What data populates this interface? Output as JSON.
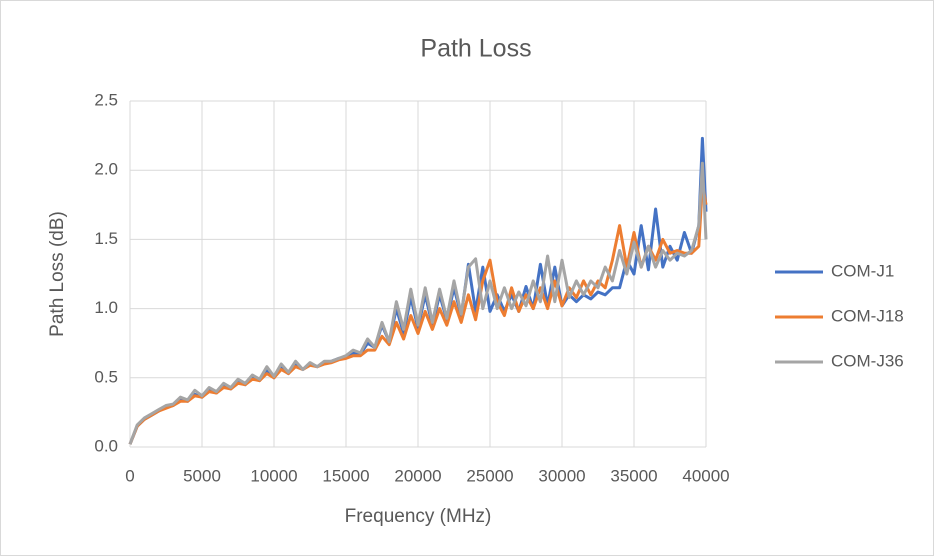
{
  "chart_data": {
    "type": "line",
    "title": "Path Loss",
    "x_label": "Frequency (MHz)",
    "y_label": "Path Loss (dB)",
    "x": [
      0,
      500,
      1000,
      1500,
      2000,
      2500,
      3000,
      3500,
      4000,
      4500,
      5000,
      5500,
      6000,
      6500,
      7000,
      7500,
      8000,
      8500,
      9000,
      9500,
      10000,
      10500,
      11000,
      11500,
      12000,
      12500,
      13000,
      13500,
      14000,
      14500,
      15000,
      15500,
      16000,
      16500,
      17000,
      17500,
      18000,
      18500,
      19000,
      19500,
      20000,
      20500,
      21000,
      21500,
      22000,
      22500,
      23000,
      23500,
      24000,
      24500,
      25000,
      25500,
      26000,
      26500,
      27000,
      27500,
      28000,
      28500,
      29000,
      29500,
      30000,
      30500,
      31000,
      31500,
      32000,
      32500,
      33000,
      33500,
      34000,
      34500,
      35000,
      35500,
      36000,
      36500,
      37000,
      37500,
      38000,
      38500,
      39000,
      39500,
      39750,
      40000
    ],
    "series": [
      {
        "name": "COM-J1",
        "color": "#4472c4",
        "values": [
          0.02,
          0.15,
          0.2,
          0.23,
          0.26,
          0.29,
          0.3,
          0.34,
          0.33,
          0.38,
          0.36,
          0.41,
          0.39,
          0.44,
          0.42,
          0.47,
          0.45,
          0.5,
          0.48,
          0.55,
          0.5,
          0.58,
          0.53,
          0.6,
          0.56,
          0.6,
          0.58,
          0.61,
          0.62,
          0.64,
          0.65,
          0.68,
          0.67,
          0.75,
          0.72,
          0.88,
          0.76,
          1.0,
          0.82,
          1.08,
          0.86,
          1.1,
          0.88,
          1.1,
          0.92,
          1.15,
          0.95,
          1.32,
          0.98,
          1.3,
          0.98,
          1.1,
          0.98,
          1.1,
          0.98,
          1.16,
          1.0,
          1.32,
          1.02,
          1.3,
          1.02,
          1.1,
          1.05,
          1.1,
          1.07,
          1.12,
          1.1,
          1.15,
          1.15,
          1.35,
          1.25,
          1.6,
          1.28,
          1.72,
          1.3,
          1.45,
          1.35,
          1.55,
          1.4,
          1.6,
          2.23,
          1.7
        ]
      },
      {
        "name": "COM-J18",
        "color": "#ed7d31",
        "values": [
          0.02,
          0.15,
          0.2,
          0.23,
          0.26,
          0.28,
          0.3,
          0.33,
          0.33,
          0.37,
          0.36,
          0.4,
          0.39,
          0.43,
          0.42,
          0.46,
          0.45,
          0.49,
          0.48,
          0.53,
          0.5,
          0.56,
          0.53,
          0.58,
          0.56,
          0.59,
          0.58,
          0.6,
          0.61,
          0.63,
          0.64,
          0.66,
          0.66,
          0.7,
          0.7,
          0.8,
          0.74,
          0.9,
          0.78,
          0.95,
          0.82,
          0.98,
          0.85,
          1.0,
          0.88,
          1.05,
          0.9,
          1.1,
          0.92,
          1.2,
          1.35,
          1.05,
          0.95,
          1.15,
          0.98,
          1.1,
          1.0,
          1.15,
          1.0,
          1.2,
          1.02,
          1.15,
          1.08,
          1.2,
          1.1,
          1.2,
          1.15,
          1.35,
          1.6,
          1.3,
          1.55,
          1.3,
          1.45,
          1.35,
          1.5,
          1.4,
          1.42,
          1.4,
          1.4,
          1.45,
          1.9,
          1.75
        ]
      },
      {
        "name": "COM-J36",
        "color": "#a5a5a5",
        "values": [
          0.02,
          0.16,
          0.21,
          0.24,
          0.27,
          0.3,
          0.31,
          0.36,
          0.34,
          0.41,
          0.37,
          0.43,
          0.4,
          0.46,
          0.43,
          0.49,
          0.46,
          0.52,
          0.49,
          0.58,
          0.51,
          0.6,
          0.54,
          0.62,
          0.56,
          0.61,
          0.58,
          0.62,
          0.62,
          0.64,
          0.66,
          0.7,
          0.68,
          0.78,
          0.72,
          0.9,
          0.76,
          1.05,
          0.85,
          1.14,
          0.88,
          1.15,
          0.9,
          1.14,
          0.93,
          1.2,
          0.96,
          1.3,
          1.36,
          1.0,
          1.2,
          1.0,
          1.15,
          1.0,
          1.12,
          1.02,
          1.2,
          1.05,
          1.38,
          1.05,
          1.35,
          1.08,
          1.2,
          1.1,
          1.2,
          1.15,
          1.3,
          1.2,
          1.42,
          1.25,
          1.48,
          1.3,
          1.45,
          1.3,
          1.42,
          1.35,
          1.4,
          1.38,
          1.42,
          1.6,
          2.05,
          1.5
        ]
      }
    ],
    "xlim": [
      0,
      40000
    ],
    "xticks": [
      0,
      5000,
      10000,
      15000,
      20000,
      25000,
      30000,
      35000,
      40000
    ],
    "ylim": [
      0,
      2.5
    ],
    "yticks": [
      {
        "value": 0,
        "label": "0.0"
      },
      0.5,
      {
        "value": 1,
        "label": "1.0"
      },
      1.5,
      {
        "value": 2,
        "label": "2.0"
      },
      2.5
    ],
    "grid": true,
    "legend": "right"
  }
}
